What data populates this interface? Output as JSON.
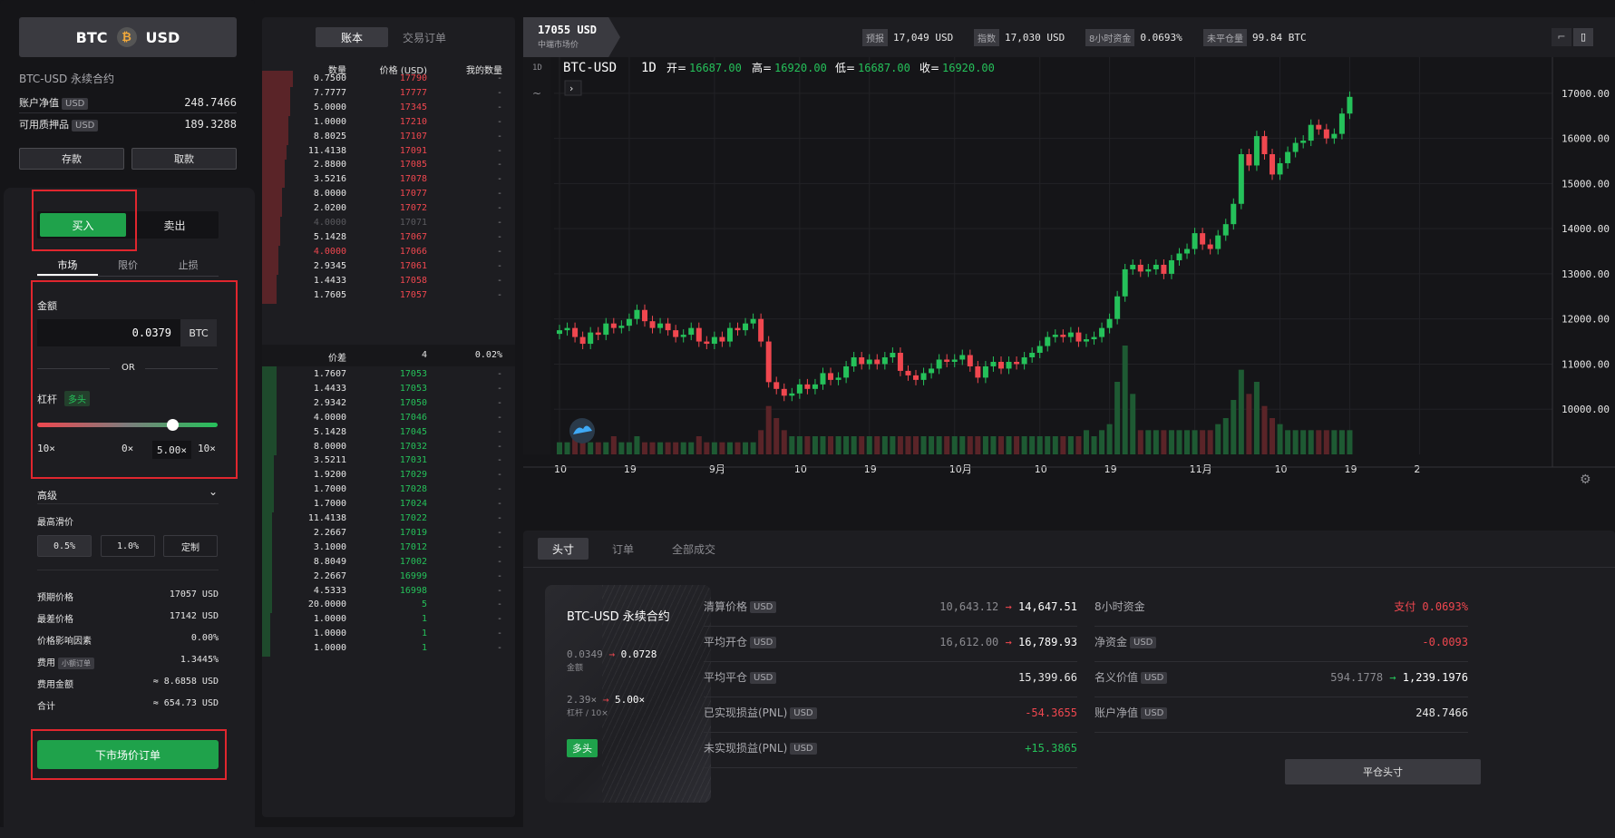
{
  "pair": {
    "base": "BTC",
    "quote": "USD",
    "coin_glyph": "₿"
  },
  "contract_title": "BTC-USD 永续合约",
  "account": [
    {
      "label": "账户净值",
      "tag": "USD",
      "value": "248.7466"
    },
    {
      "label": "可用质押品",
      "tag": "USD",
      "value": "189.3288"
    }
  ],
  "deposit_label": "存款",
  "withdraw_label": "取款",
  "buy_label": "买入",
  "sell_label": "卖出",
  "order_types": [
    "市场",
    "限价",
    "止损"
  ],
  "amount_label": "金额",
  "amount_value": "0.0379",
  "amount_unit": "BTC",
  "or_label": "OR",
  "leverage_label": "杠杆",
  "leverage_side": "多头",
  "leverage_min": "10×",
  "leverage_mid": "0×",
  "leverage_max": "10×",
  "leverage_value": "5.00×",
  "advanced_label": "高级",
  "max_slippage_label": "最高滑价",
  "slippage_options": [
    "0.5%",
    "1.0%",
    "定制"
  ],
  "order_info": [
    {
      "label": "预期价格",
      "value": "17057 USD"
    },
    {
      "label": "最差价格",
      "value": "17142 USD"
    },
    {
      "label": "价格影响因素",
      "value": "0.00%"
    },
    {
      "label": "费用",
      "tag": "小额订单",
      "value": "1.3445%"
    },
    {
      "label": "费用金额",
      "value": "≈ 8.6858 USD"
    },
    {
      "label": "合计",
      "value": "≈ 654.73 USD"
    }
  ],
  "place_order_label": "下市场价订单",
  "book": {
    "tabs": [
      "账本",
      "交易订单"
    ],
    "headers": {
      "qty": "数量",
      "price": "价格 (USD)",
      "mine": "我的数量"
    },
    "asks": [
      {
        "q": "0.7500",
        "p": "17790",
        "d": 0.15
      },
      {
        "q": "7.7777",
        "p": "17777",
        "d": 0.14
      },
      {
        "q": "5.0000",
        "p": "17345",
        "d": 0.14
      },
      {
        "q": "1.0000",
        "p": "17210",
        "d": 0.13
      },
      {
        "q": "8.8025",
        "p": "17107",
        "d": 0.13
      },
      {
        "q": "11.4138",
        "p": "17091",
        "d": 0.12
      },
      {
        "q": "2.8800",
        "p": "17085",
        "d": 0.11
      },
      {
        "q": "3.5216",
        "p": "17078",
        "d": 0.11
      },
      {
        "q": "8.0000",
        "p": "17077",
        "d": 0.1
      },
      {
        "q": "2.0200",
        "p": "17072",
        "d": 0.1
      },
      {
        "q": "4.0000",
        "p": "17071",
        "d": 0.09,
        "faded": true
      },
      {
        "q": "5.1428",
        "p": "17067",
        "d": 0.09
      },
      {
        "q": "4.0000",
        "p": "17066",
        "d": 0.08,
        "red": true
      },
      {
        "q": "2.9345",
        "p": "17061",
        "d": 0.08
      },
      {
        "q": "1.4433",
        "p": "17058",
        "d": 0.07
      },
      {
        "q": "1.7605",
        "p": "17057",
        "d": 0.07
      }
    ],
    "spread_label": "价差",
    "spread_value": "4",
    "spread_pct": "0.02%",
    "bids": [
      {
        "q": "1.7607",
        "p": "17053",
        "d": 0.07
      },
      {
        "q": "1.4433",
        "p": "17053",
        "d": 0.07
      },
      {
        "q": "2.9342",
        "p": "17050",
        "d": 0.07
      },
      {
        "q": "4.0000",
        "p": "17046",
        "d": 0.07
      },
      {
        "q": "5.1428",
        "p": "17045",
        "d": 0.07
      },
      {
        "q": "8.0000",
        "p": "17032",
        "d": 0.07
      },
      {
        "q": "3.5211",
        "p": "17031",
        "d": 0.06
      },
      {
        "q": "1.9200",
        "p": "17029",
        "d": 0.06
      },
      {
        "q": "1.7000",
        "p": "17028",
        "d": 0.06
      },
      {
        "q": "1.7000",
        "p": "17024",
        "d": 0.06
      },
      {
        "q": "11.4138",
        "p": "17022",
        "d": 0.05
      },
      {
        "q": "2.2667",
        "p": "17019",
        "d": 0.05
      },
      {
        "q": "3.1000",
        "p": "17012",
        "d": 0.05
      },
      {
        "q": "8.8049",
        "p": "17002",
        "d": 0.05
      },
      {
        "q": "2.2667",
        "p": "16999",
        "d": 0.05
      },
      {
        "q": "4.5333",
        "p": "16998",
        "d": 0.05
      },
      {
        "q": "20.0000",
        "p": "5",
        "d": 0.05
      },
      {
        "q": "1.0000",
        "p": "1",
        "d": 0.04
      },
      {
        "q": "1.0000",
        "p": "1",
        "d": 0.04
      },
      {
        "q": "1.0000",
        "p": "1",
        "d": 0.04
      }
    ],
    "mine_placeholder": "-"
  },
  "top": {
    "last_price": "17055 USD",
    "last_price_label": "中端市场价",
    "stats": [
      {
        "k": "预报",
        "v": "17,049 USD"
      },
      {
        "k": "指数",
        "v": "17,030 USD"
      },
      {
        "k": "8小时资金",
        "v": "0.0693%"
      },
      {
        "k": "未平仓量",
        "v": "99.84 BTC"
      }
    ]
  },
  "chart_data": {
    "type": "candlestick",
    "title": "BTC-USD",
    "interval": "1D",
    "ohlc_labels": {
      "open": "开=",
      "high": "高=",
      "low": "低=",
      "close": "收="
    },
    "ohlc_values": {
      "open": "16687.00",
      "high": "16920.00",
      "low": "16687.00",
      "close": "16920.00"
    },
    "y_ticks": [
      "17000.00",
      "16000.00",
      "15000.00",
      "14000.00",
      "13000.00",
      "12000.00",
      "11000.00",
      "10000.00"
    ],
    "y_tick_values": [
      17000,
      16000,
      15000,
      14000,
      13000,
      12000,
      11000,
      10000
    ],
    "x_ticks": [
      "10",
      "19",
      "9月",
      "10",
      "19",
      "10月",
      "10",
      "19",
      "11月",
      "10",
      "19",
      "2"
    ],
    "ylim": [
      9000,
      17800
    ],
    "grid": true,
    "closes": [
      11750,
      11800,
      11600,
      11450,
      11700,
      11650,
      11900,
      11800,
      11850,
      12000,
      12200,
      11950,
      11800,
      11900,
      11750,
      11600,
      11650,
      11800,
      11500,
      11450,
      11600,
      11500,
      11800,
      11750,
      11900,
      12000,
      11500,
      10600,
      10450,
      10300,
      10350,
      10550,
      10450,
      10550,
      10800,
      10650,
      10700,
      10950,
      11150,
      11000,
      11100,
      11000,
      11150,
      11250,
      10850,
      10750,
      10650,
      10800,
      10900,
      11100,
      11050,
      11100,
      11200,
      10950,
      10700,
      10950,
      11050,
      10900,
      11050,
      11000,
      11150,
      11250,
      11400,
      11600,
      11650,
      11600,
      11700,
      11500,
      11550,
      11600,
      11800,
      12000,
      12500,
      13100,
      13200,
      13050,
      13100,
      13200,
      13000,
      13300,
      13450,
      13550,
      13900,
      13650,
      13550,
      13850,
      14100,
      14550,
      15650,
      15400,
      16050,
      15650,
      15200,
      15450,
      15700,
      15900,
      15950,
      16300,
      16200,
      16000,
      16100,
      16550,
      16920
    ],
    "volumes": [
      2,
      2,
      3,
      3,
      2,
      2,
      2,
      3,
      2,
      2,
      3,
      2,
      2,
      2,
      2,
      2,
      2,
      2,
      3,
      2,
      2,
      2,
      2,
      2,
      2,
      2,
      4,
      8,
      6,
      4,
      3,
      3,
      3,
      3,
      3,
      3,
      3,
      3,
      3,
      3,
      3,
      3,
      3,
      3,
      3,
      3,
      3,
      3,
      3,
      3,
      3,
      3,
      3,
      3,
      3,
      3,
      3,
      3,
      3,
      3,
      3,
      3,
      3,
      3,
      3,
      3,
      3,
      3,
      4,
      3,
      4,
      5,
      12,
      18,
      10,
      4,
      4,
      4,
      4,
      4,
      4,
      4,
      4,
      4,
      4,
      5,
      6,
      9,
      14,
      10,
      12,
      8,
      6,
      5,
      4,
      4,
      4,
      4,
      4,
      4,
      4,
      4,
      4
    ]
  },
  "position": {
    "tabs": [
      "头寸",
      "订单",
      "全部成交"
    ],
    "card_title": "BTC-USD 永续合约",
    "card_amount_from": "0.0349",
    "card_amount_to": "0.0728",
    "card_amount_label": "金额",
    "card_lev_from": "2.39×",
    "card_lev_to": "5.00×",
    "card_lev_label": "杠杆 / 10×",
    "card_badge": "多头",
    "left_rows": [
      {
        "label": "清算价格",
        "tag": "USD",
        "from": "10,643.12",
        "to": "14,647.51"
      },
      {
        "label": "平均开仓",
        "tag": "USD",
        "from": "16,612.00",
        "to": "16,789.93"
      },
      {
        "label": "平均平仓",
        "tag": "USD",
        "value": "15,399.66"
      },
      {
        "label": "已实现损益(PNL)",
        "tag": "USD",
        "value": "-54.3655",
        "neg": true
      },
      {
        "label": "未实现损益(PNL)",
        "tag": "USD",
        "value": "+15.3865",
        "pos": true
      }
    ],
    "right_rows": [
      {
        "label": "8小时资金",
        "value": "支付 0.0693%",
        "neg": true
      },
      {
        "label": "净资金",
        "tag": "USD",
        "value": "-0.0093",
        "neg": true
      },
      {
        "label": "名义价值",
        "tag": "USD",
        "from": "594.1778",
        "to": "1,239.1976"
      },
      {
        "label": "账户净值",
        "tag": "USD",
        "value": "248.7466"
      }
    ],
    "close_label": "平仓头寸"
  }
}
